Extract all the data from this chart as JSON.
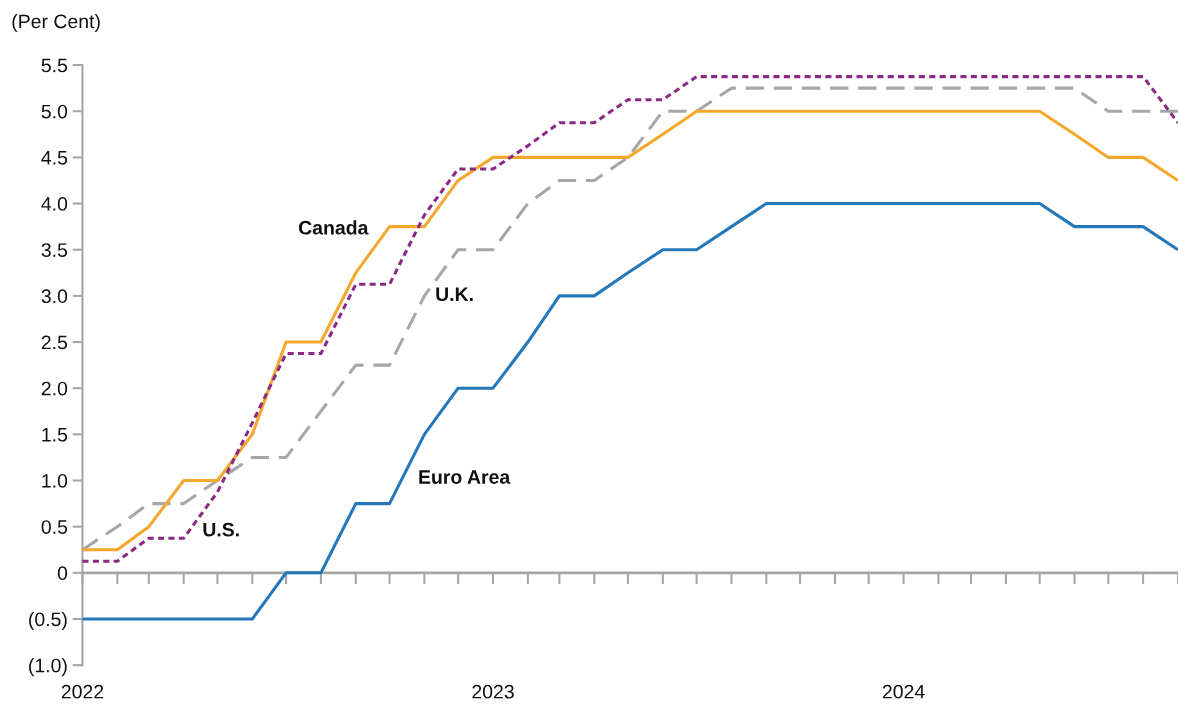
{
  "chart_data": {
    "type": "line",
    "ylabel": "(Per Cent)",
    "x": [
      "2022-01",
      "2022-02",
      "2022-03",
      "2022-04",
      "2022-05",
      "2022-06",
      "2022-07",
      "2022-08",
      "2022-09",
      "2022-10",
      "2022-11",
      "2022-12",
      "2023-01",
      "2023-02",
      "2023-03",
      "2023-04",
      "2023-05",
      "2023-06",
      "2023-07",
      "2023-08",
      "2023-09",
      "2023-10",
      "2023-11",
      "2023-12",
      "2024-01",
      "2024-02",
      "2024-03",
      "2024-04",
      "2024-05",
      "2024-06",
      "2024-07",
      "2024-08",
      "2024-09"
    ],
    "series": [
      {
        "name": "Canada",
        "color": "#f5a82d",
        "line_style": "solid",
        "values": [
          0.25,
          0.25,
          0.5,
          1.0,
          1.0,
          1.5,
          2.5,
          2.5,
          3.25,
          3.75,
          3.75,
          4.25,
          4.5,
          4.5,
          4.5,
          4.5,
          4.5,
          4.75,
          5.0,
          5.0,
          5.0,
          5.0,
          5.0,
          5.0,
          5.0,
          5.0,
          5.0,
          5.0,
          5.0,
          4.75,
          4.5,
          4.5,
          4.25
        ]
      },
      {
        "name": "U.S.",
        "color": "#8b2a84",
        "line_style": "dotted",
        "values": [
          0.125,
          0.125,
          0.375,
          0.375,
          0.875,
          1.625,
          2.375,
          2.375,
          3.125,
          3.125,
          3.875,
          4.375,
          4.375,
          4.625,
          4.875,
          4.875,
          5.125,
          5.125,
          5.375,
          5.375,
          5.375,
          5.375,
          5.375,
          5.375,
          5.375,
          5.375,
          5.375,
          5.375,
          5.375,
          5.375,
          5.375,
          5.375,
          4.875
        ]
      },
      {
        "name": "U.K.",
        "color": "#a7a7aa",
        "line_style": "dashed",
        "values": [
          0.25,
          0.5,
          0.75,
          0.75,
          1.0,
          1.25,
          1.25,
          1.75,
          2.25,
          2.25,
          3.0,
          3.5,
          3.5,
          4.0,
          4.25,
          4.25,
          4.5,
          5.0,
          5.0,
          5.25,
          5.25,
          5.25,
          5.25,
          5.25,
          5.25,
          5.25,
          5.25,
          5.25,
          5.25,
          5.25,
          5.0,
          5.0,
          5.0
        ]
      },
      {
        "name": "Euro Area",
        "color": "#2478b9",
        "line_style": "solid",
        "values": [
          -0.5,
          -0.5,
          -0.5,
          -0.5,
          -0.5,
          -0.5,
          0.0,
          0.0,
          0.75,
          0.75,
          1.5,
          2.0,
          2.0,
          2.5,
          3.0,
          3.0,
          3.25,
          3.5,
          3.5,
          3.75,
          4.0,
          4.0,
          4.0,
          4.0,
          4.0,
          4.0,
          4.0,
          4.0,
          4.0,
          3.75,
          3.75,
          3.75,
          3.5
        ]
      }
    ],
    "xlim": [
      "2022-01",
      "2024-09"
    ],
    "xticks": [
      {
        "value": "2022-01",
        "label": "2022"
      },
      {
        "value": "2022-02",
        "label": null
      },
      {
        "value": "2022-03",
        "label": null
      },
      {
        "value": "2022-04",
        "label": null
      },
      {
        "value": "2022-05",
        "label": null
      },
      {
        "value": "2022-06",
        "label": null
      },
      {
        "value": "2022-07",
        "label": null
      },
      {
        "value": "2022-08",
        "label": null
      },
      {
        "value": "2022-09",
        "label": null
      },
      {
        "value": "2022-10",
        "label": null
      },
      {
        "value": "2022-11",
        "label": null
      },
      {
        "value": "2022-12",
        "label": null
      },
      {
        "value": "2023-01",
        "label": "2023"
      },
      {
        "value": "2023-02",
        "label": null
      },
      {
        "value": "2023-03",
        "label": null
      },
      {
        "value": "2023-04",
        "label": null
      },
      {
        "value": "2023-05",
        "label": null
      },
      {
        "value": "2023-06",
        "label": null
      },
      {
        "value": "2023-07",
        "label": null
      },
      {
        "value": "2023-08",
        "label": null
      },
      {
        "value": "2023-09",
        "label": null
      },
      {
        "value": "2023-10",
        "label": null
      },
      {
        "value": "2023-11",
        "label": null
      },
      {
        "value": "2023-12",
        "label": null
      },
      {
        "value": "2024-01",
        "label": "2024"
      },
      {
        "value": "2024-02",
        "label": null
      },
      {
        "value": "2024-03",
        "label": null
      },
      {
        "value": "2024-04",
        "label": null
      },
      {
        "value": "2024-05",
        "label": null
      },
      {
        "value": "2024-06",
        "label": null
      },
      {
        "value": "2024-07",
        "label": null
      },
      {
        "value": "2024-08",
        "label": null
      },
      {
        "value": "2024-09",
        "label": null
      }
    ],
    "ylim": [
      -1.0,
      5.5
    ],
    "yticks": [
      {
        "value": -1.0,
        "label": "(1.0)"
      },
      {
        "value": -0.5,
        "label": "(0.5)"
      },
      0,
      {
        "value": 0.5,
        "label": "0.5"
      },
      {
        "value": 1.0,
        "label": "1.0"
      },
      {
        "value": 1.5,
        "label": "1.5"
      },
      {
        "value": 2.0,
        "label": "2.0"
      },
      {
        "value": 2.5,
        "label": "2.5"
      },
      {
        "value": 3.0,
        "label": "3.0"
      },
      {
        "value": 3.5,
        "label": "3.5"
      },
      {
        "value": 4.0,
        "label": "4.0"
      },
      {
        "value": 4.5,
        "label": "4.5"
      },
      {
        "value": 5.0,
        "label": "5.0"
      },
      {
        "value": 5.5,
        "label": "5.5"
      }
    ],
    "legend": false
  }
}
